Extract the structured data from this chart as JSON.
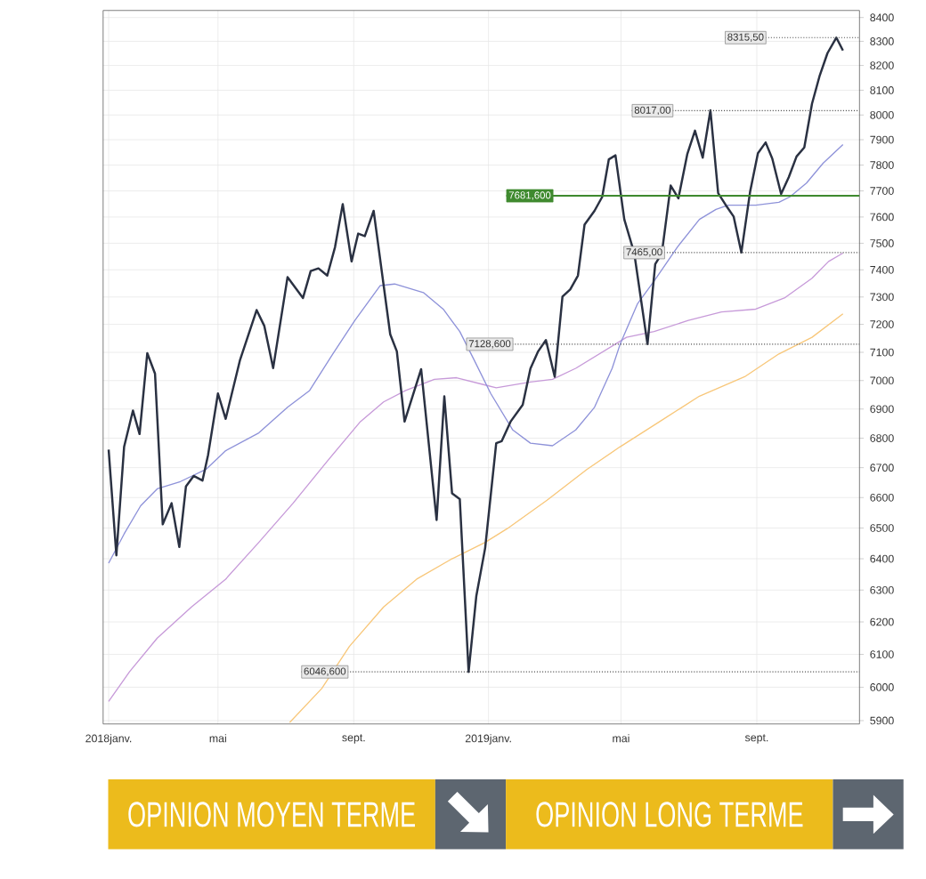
{
  "chart_data": {
    "type": "line",
    "xlim": [
      "2018-01-17",
      "2019-12-03"
    ],
    "xticks": [
      {
        "value": "2018-01-22",
        "label": "2018janv."
      },
      {
        "value": "2018-05-01",
        "label": "mai"
      },
      {
        "value": "2018-09-01",
        "label": "sept."
      },
      {
        "value": "2019-01-01",
        "label": "2019janv."
      },
      {
        "value": "2019-05-01",
        "label": "mai"
      },
      {
        "value": "2019-09-01",
        "label": "sept."
      }
    ],
    "ylim": [
      5890,
      8430
    ],
    "yticks": [
      5900,
      6000,
      6100,
      6200,
      6300,
      6400,
      6500,
      6600,
      6700,
      6800,
      6900,
      7000,
      7100,
      7200,
      7300,
      7400,
      7500,
      7600,
      7700,
      7800,
      7900,
      8000,
      8100,
      8200,
      8300,
      8400
    ],
    "log": "y",
    "grid": true,
    "series": [
      {
        "color": "#2a3142",
        "x": [
          "2018-01-22",
          "2018-01-29",
          "2018-02-05",
          "2018-02-13",
          "2018-02-19",
          "2018-02-26",
          "2018-03-05",
          "2018-03-12",
          "2018-03-20",
          "2018-03-27",
          "2018-04-02",
          "2018-04-09",
          "2018-04-17",
          "2018-04-22",
          "2018-05-01",
          "2018-05-08",
          "2018-05-21",
          "2018-06-05",
          "2018-06-12",
          "2018-06-20",
          "2018-07-03",
          "2018-07-17",
          "2018-07-24",
          "2018-07-31",
          "2018-08-08",
          "2018-08-15",
          "2018-08-22",
          "2018-08-30",
          "2018-09-05",
          "2018-09-11",
          "2018-09-19",
          "2018-10-04",
          "2018-10-10",
          "2018-10-17",
          "2018-11-01",
          "2018-11-15",
          "2018-11-22",
          "2018-11-29",
          "2018-12-06",
          "2018-12-14",
          "2018-12-21",
          "2018-12-29",
          "2019-01-08",
          "2019-01-13",
          "2019-01-21",
          "2019-02-01",
          "2019-02-08",
          "2019-02-15",
          "2019-02-22",
          "2019-03-02",
          "2019-03-09",
          "2019-03-16",
          "2019-03-23",
          "2019-03-29",
          "2019-04-07",
          "2019-04-14",
          "2019-04-20",
          "2019-04-26",
          "2019-05-04",
          "2019-05-13",
          "2019-05-25",
          "2019-06-01",
          "2019-06-07",
          "2019-06-15",
          "2019-06-22",
          "2019-06-30",
          "2019-07-07",
          "2019-07-14",
          "2019-07-21",
          "2019-07-28",
          "2019-08-04",
          "2019-08-11",
          "2019-08-18",
          "2019-08-26",
          "2019-09-02",
          "2019-09-09",
          "2019-09-15",
          "2019-09-23",
          "2019-09-30",
          "2019-10-07",
          "2019-10-14",
          "2019-10-21",
          "2019-10-28",
          "2019-11-04",
          "2019-11-12",
          "2019-11-18"
        ],
        "values": [
          6761,
          6411,
          6770,
          6895,
          6814,
          7097,
          7024,
          6512,
          6581,
          6438,
          6637,
          6672,
          6657,
          6742,
          6954,
          6866,
          7073,
          7252,
          7194,
          7044,
          7373,
          7296,
          7396,
          7406,
          7379,
          7485,
          7649,
          7432,
          7537,
          7527,
          7623,
          7164,
          7103,
          6857,
          7040,
          6526,
          6944,
          6614,
          6595,
          6046.6,
          6282,
          6435,
          6783,
          6790,
          6857,
          6915,
          7042,
          7103,
          7144,
          7013,
          7301,
          7328,
          7379,
          7570,
          7623,
          7677,
          7823,
          7839,
          7591,
          7463,
          7128.6,
          7421,
          7463,
          7721,
          7671,
          7843,
          7937,
          7830,
          8017,
          7692,
          7645,
          7602,
          7465,
          7699,
          7848,
          7890,
          7826,
          7688,
          7754,
          7835,
          7870,
          8044,
          8159,
          8251,
          8315.5,
          8262
        ]
      },
      {
        "color": "#8e92d9",
        "x": [
          "2018-01-22",
          "2018-02-05",
          "2018-02-20",
          "2018-03-07",
          "2018-03-28",
          "2018-04-20",
          "2018-05-08",
          "2018-06-07",
          "2018-07-03",
          "2018-07-23",
          "2018-08-13",
          "2018-09-02",
          "2018-09-25",
          "2018-10-08",
          "2018-11-03",
          "2018-11-21",
          "2018-12-06",
          "2018-12-19",
          "2019-01-03",
          "2019-01-23",
          "2019-02-08",
          "2019-02-28",
          "2019-03-21",
          "2019-04-07",
          "2019-04-23",
          "2019-04-30",
          "2019-05-16",
          "2019-05-31",
          "2019-06-21",
          "2019-07-11",
          "2019-07-26",
          "2019-08-06",
          "2019-08-31",
          "2019-09-21",
          "2019-10-01",
          "2019-10-16",
          "2019-10-31",
          "2019-11-18"
        ],
        "values": [
          6386,
          6480,
          6573,
          6629,
          6653,
          6694,
          6757,
          6818,
          6906,
          6965,
          7094,
          7215,
          7342,
          7348,
          7317,
          7255,
          7174,
          7073,
          6954,
          6828,
          6783,
          6774,
          6828,
          6906,
          7043,
          7127,
          7276,
          7359,
          7485,
          7591,
          7629,
          7645,
          7645,
          7656,
          7677,
          7731,
          7808,
          7882
        ]
      },
      {
        "color": "#c79ad9",
        "x": [
          "2018-01-22",
          "2018-02-10",
          "2018-03-07",
          "2018-04-07",
          "2018-05-08",
          "2018-06-07",
          "2018-07-08",
          "2018-08-08",
          "2018-09-07",
          "2018-09-28",
          "2018-10-18",
          "2018-11-13",
          "2018-12-03",
          "2018-12-29",
          "2019-01-08",
          "2019-02-08",
          "2019-02-28",
          "2019-03-21",
          "2019-05-06",
          "2019-05-31",
          "2019-07-01",
          "2019-07-31",
          "2019-08-31",
          "2019-09-26",
          "2019-10-21",
          "2019-11-05",
          "2019-11-18"
        ],
        "values": [
          5957,
          6047,
          6150,
          6247,
          6335,
          6453,
          6581,
          6722,
          6857,
          6925,
          6965,
          7004,
          7010,
          6984,
          6974,
          6995,
          7004,
          7043,
          7154,
          7174,
          7215,
          7245,
          7255,
          7296,
          7369,
          7432,
          7463
        ]
      },
      {
        "color": "#f8c77a",
        "x": [
          "2018-07-05",
          "2018-08-03",
          "2018-08-28",
          "2018-09-28",
          "2018-10-28",
          "2018-11-28",
          "2018-12-29",
          "2019-01-18",
          "2019-02-23",
          "2019-03-31",
          "2019-04-30",
          "2019-06-05",
          "2019-07-11",
          "2019-08-21",
          "2019-09-21",
          "2019-10-21",
          "2019-11-18"
        ],
        "values": [
          5895,
          5996,
          6124,
          6247,
          6335,
          6398,
          6453,
          6498,
          6591,
          6694,
          6770,
          6857,
          6945,
          7013,
          7094,
          7154,
          7239
        ]
      }
    ],
    "ref_lines": [
      {
        "axis": "y",
        "value": 8315.5,
        "label": "8315,50",
        "color": "#555555",
        "line_style": "dotted"
      },
      {
        "axis": "y",
        "value": 8017,
        "label": "8017,00",
        "color": "#555555",
        "line_style": "dotted"
      },
      {
        "axis": "y",
        "value": 7681.6,
        "label": "7681,600",
        "color": "#3f8a2f",
        "line_style": "solid"
      },
      {
        "axis": "y",
        "value": 7465,
        "label": "7465,00",
        "color": "#555555",
        "line_style": "dotted"
      },
      {
        "axis": "y",
        "value": 7128.6,
        "label": "7128,600",
        "color": "#555555",
        "line_style": "dotted"
      },
      {
        "axis": "y",
        "value": 6046.6,
        "label": "6046,600",
        "color": "#555555",
        "line_style": "dotted"
      }
    ],
    "annotations": [
      "OPINION MOYEN TERME",
      "OPINION LONG TERME"
    ]
  }
}
